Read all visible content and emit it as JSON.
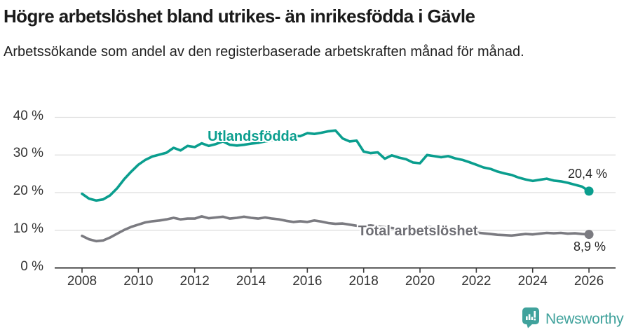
{
  "header": {
    "title": "Högre arbetslöshet bland utrikes- än inrikesfödda i Gävle",
    "subtitle": "Arbetssökande som andel av den registerbaserade arbetskraften månad för månad."
  },
  "footer": {
    "brand": "Newsworthy",
    "logo_icon": "speech-bubble-bar-chart-exclamation",
    "brand_color": "#40a29c"
  },
  "chart_data": {
    "type": "line",
    "title": "Högre arbetslöshet bland utrikes- än inrikesfödda i Gävle",
    "subtitle": "Arbetssökande som andel av den registerbaserade arbetskraften månad för månad.",
    "xlabel": "",
    "ylabel": "",
    "xlim": [
      2007.05,
      2026.95
    ],
    "ylim": [
      0,
      40
    ],
    "grid": true,
    "legend_position": "inline-labels",
    "colors": {
      "grid": "#dddddd",
      "axis": "#3c3c3c",
      "tick_text": "#333333"
    },
    "x_ticks": [
      2008,
      2010,
      2012,
      2014,
      2016,
      2018,
      2020,
      2022,
      2024,
      2026
    ],
    "y_ticks": [
      {
        "value": 0,
        "label": "0 %"
      },
      {
        "value": 10,
        "label": "10 %"
      },
      {
        "value": 20,
        "label": "20 %"
      },
      {
        "value": 30,
        "label": "30 %"
      },
      {
        "value": 40,
        "label": "40 %"
      }
    ],
    "series": [
      {
        "id": "utlandsfodda",
        "name": "Utlandsfödda",
        "color": "#0a9e8e",
        "end_label": "20,4 %",
        "points": [
          [
            2008.0,
            19.7
          ],
          [
            2008.25,
            18.4
          ],
          [
            2008.5,
            17.9
          ],
          [
            2008.75,
            18.2
          ],
          [
            2009.0,
            19.3
          ],
          [
            2009.25,
            21.2
          ],
          [
            2009.5,
            23.6
          ],
          [
            2009.75,
            25.6
          ],
          [
            2010.0,
            27.4
          ],
          [
            2010.25,
            28.7
          ],
          [
            2010.5,
            29.6
          ],
          [
            2010.75,
            30.1
          ],
          [
            2011.0,
            30.6
          ],
          [
            2011.25,
            31.9
          ],
          [
            2011.5,
            31.2
          ],
          [
            2011.75,
            32.4
          ],
          [
            2012.0,
            32.1
          ],
          [
            2012.25,
            33.1
          ],
          [
            2012.5,
            32.4
          ],
          [
            2012.75,
            32.9
          ],
          [
            2013.0,
            33.6
          ],
          [
            2013.25,
            32.7
          ],
          [
            2013.5,
            32.5
          ],
          [
            2013.75,
            32.7
          ],
          [
            2014.0,
            33.0
          ],
          [
            2014.25,
            33.2
          ],
          [
            2014.5,
            33.6
          ],
          [
            2014.75,
            33.9
          ],
          [
            2015.0,
            34.3
          ],
          [
            2015.25,
            34.7
          ],
          [
            2015.5,
            35.1
          ],
          [
            2015.75,
            35.0
          ],
          [
            2016.0,
            35.8
          ],
          [
            2016.25,
            35.6
          ],
          [
            2016.5,
            35.9
          ],
          [
            2016.75,
            36.3
          ],
          [
            2017.0,
            36.5
          ],
          [
            2017.25,
            34.4
          ],
          [
            2017.5,
            33.6
          ],
          [
            2017.75,
            33.8
          ],
          [
            2018.0,
            30.9
          ],
          [
            2018.25,
            30.5
          ],
          [
            2018.5,
            30.7
          ],
          [
            2018.75,
            29.0
          ],
          [
            2019.0,
            29.9
          ],
          [
            2019.25,
            29.3
          ],
          [
            2019.5,
            28.9
          ],
          [
            2019.75,
            28.0
          ],
          [
            2020.0,
            27.8
          ],
          [
            2020.25,
            30.0
          ],
          [
            2020.5,
            29.7
          ],
          [
            2020.75,
            29.4
          ],
          [
            2021.0,
            29.7
          ],
          [
            2021.25,
            29.1
          ],
          [
            2021.5,
            28.7
          ],
          [
            2021.75,
            28.1
          ],
          [
            2022.0,
            27.4
          ],
          [
            2022.25,
            26.7
          ],
          [
            2022.5,
            26.3
          ],
          [
            2022.75,
            25.6
          ],
          [
            2023.0,
            25.1
          ],
          [
            2023.25,
            24.7
          ],
          [
            2023.5,
            24.0
          ],
          [
            2023.75,
            23.5
          ],
          [
            2024.0,
            23.1
          ],
          [
            2024.25,
            23.4
          ],
          [
            2024.5,
            23.7
          ],
          [
            2024.75,
            23.2
          ],
          [
            2025.0,
            23.0
          ],
          [
            2025.25,
            22.6
          ],
          [
            2025.5,
            22.1
          ],
          [
            2025.75,
            21.6
          ],
          [
            2026.0,
            20.4
          ]
        ]
      },
      {
        "id": "total-arbetsloshet",
        "name": "Total arbetslöshet",
        "color": "#7b7b81",
        "label_color": "#6f6f75",
        "end_label": "8,9 %",
        "points": [
          [
            2008.0,
            8.5
          ],
          [
            2008.25,
            7.6
          ],
          [
            2008.5,
            7.1
          ],
          [
            2008.75,
            7.3
          ],
          [
            2009.0,
            8.1
          ],
          [
            2009.25,
            9.1
          ],
          [
            2009.5,
            10.1
          ],
          [
            2009.75,
            10.9
          ],
          [
            2010.0,
            11.5
          ],
          [
            2010.25,
            12.1
          ],
          [
            2010.5,
            12.4
          ],
          [
            2010.75,
            12.6
          ],
          [
            2011.0,
            12.9
          ],
          [
            2011.25,
            13.3
          ],
          [
            2011.5,
            12.9
          ],
          [
            2011.75,
            13.1
          ],
          [
            2012.0,
            13.1
          ],
          [
            2012.25,
            13.7
          ],
          [
            2012.5,
            13.2
          ],
          [
            2012.75,
            13.4
          ],
          [
            2013.0,
            13.6
          ],
          [
            2013.25,
            13.1
          ],
          [
            2013.5,
            13.3
          ],
          [
            2013.75,
            13.6
          ],
          [
            2014.0,
            13.3
          ],
          [
            2014.25,
            13.1
          ],
          [
            2014.5,
            13.4
          ],
          [
            2014.75,
            13.1
          ],
          [
            2015.0,
            12.9
          ],
          [
            2015.25,
            12.5
          ],
          [
            2015.5,
            12.2
          ],
          [
            2015.75,
            12.4
          ],
          [
            2016.0,
            12.2
          ],
          [
            2016.25,
            12.6
          ],
          [
            2016.5,
            12.3
          ],
          [
            2016.75,
            11.9
          ],
          [
            2017.0,
            11.7
          ],
          [
            2017.25,
            11.8
          ],
          [
            2017.5,
            11.5
          ],
          [
            2017.75,
            11.2
          ],
          [
            2018.0,
            11.1
          ],
          [
            2018.25,
            11.3
          ],
          [
            2018.5,
            11.0
          ],
          [
            2018.75,
            10.8
          ],
          [
            2019.0,
            10.6
          ],
          [
            2019.25,
            10.4
          ],
          [
            2019.5,
            10.2
          ],
          [
            2019.75,
            10.0
          ],
          [
            2020.0,
            10.3
          ],
          [
            2020.25,
            10.9
          ],
          [
            2020.5,
            10.7
          ],
          [
            2020.75,
            10.5
          ],
          [
            2021.0,
            10.3
          ],
          [
            2021.25,
            10.0
          ],
          [
            2021.5,
            9.8
          ],
          [
            2021.75,
            9.5
          ],
          [
            2022.0,
            9.4
          ],
          [
            2022.25,
            9.2
          ],
          [
            2022.5,
            9.0
          ],
          [
            2022.75,
            8.8
          ],
          [
            2023.0,
            8.7
          ],
          [
            2023.25,
            8.6
          ],
          [
            2023.5,
            8.8
          ],
          [
            2023.75,
            9.0
          ],
          [
            2024.0,
            8.9
          ],
          [
            2024.25,
            9.1
          ],
          [
            2024.5,
            9.3
          ],
          [
            2024.75,
            9.2
          ],
          [
            2025.0,
            9.3
          ],
          [
            2025.25,
            9.1
          ],
          [
            2025.5,
            9.2
          ],
          [
            2025.75,
            9.0
          ],
          [
            2026.0,
            8.9
          ]
        ]
      }
    ]
  }
}
